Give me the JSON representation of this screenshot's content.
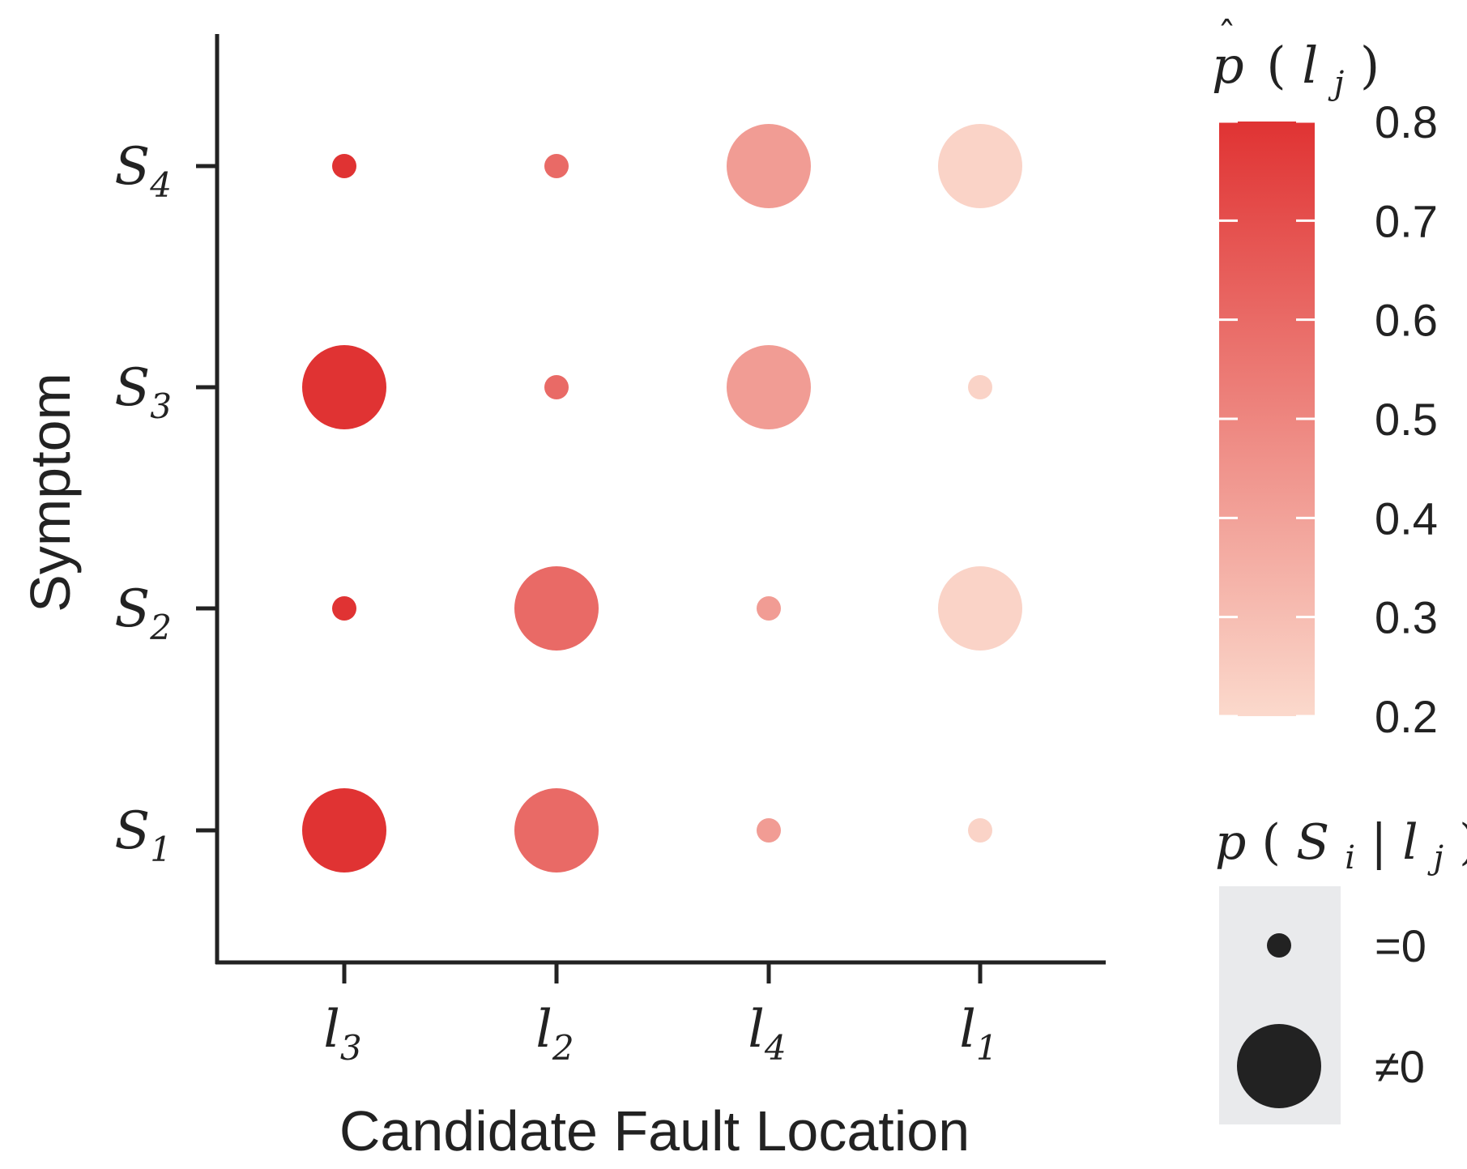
{
  "chart_data": {
    "type": "scatter",
    "subtype": "bubble-matrix",
    "xlabel": "Candidate Fault Location",
    "ylabel": "Symptom",
    "x_categories": [
      {
        "base": "l",
        "sub": "3"
      },
      {
        "base": "l",
        "sub": "2"
      },
      {
        "base": "l",
        "sub": "4"
      },
      {
        "base": "l",
        "sub": "1"
      }
    ],
    "y_categories": [
      {
        "base": "S",
        "sub": "1"
      },
      {
        "base": "S",
        "sub": "2"
      },
      {
        "base": "S",
        "sub": "3"
      },
      {
        "base": "S",
        "sub": "4"
      }
    ],
    "points": [
      {
        "x": "l3",
        "y": "S1",
        "p_hat": 0.8,
        "nonzero": true
      },
      {
        "x": "l3",
        "y": "S2",
        "p_hat": 0.8,
        "nonzero": false
      },
      {
        "x": "l3",
        "y": "S3",
        "p_hat": 0.8,
        "nonzero": true
      },
      {
        "x": "l3",
        "y": "S4",
        "p_hat": 0.8,
        "nonzero": false
      },
      {
        "x": "l2",
        "y": "S1",
        "p_hat": 0.6,
        "nonzero": true
      },
      {
        "x": "l2",
        "y": "S2",
        "p_hat": 0.6,
        "nonzero": true
      },
      {
        "x": "l2",
        "y": "S3",
        "p_hat": 0.6,
        "nonzero": false
      },
      {
        "x": "l2",
        "y": "S4",
        "p_hat": 0.6,
        "nonzero": false
      },
      {
        "x": "l4",
        "y": "S1",
        "p_hat": 0.42,
        "nonzero": false
      },
      {
        "x": "l4",
        "y": "S2",
        "p_hat": 0.42,
        "nonzero": false
      },
      {
        "x": "l4",
        "y": "S3",
        "p_hat": 0.42,
        "nonzero": true
      },
      {
        "x": "l4",
        "y": "S4",
        "p_hat": 0.42,
        "nonzero": true
      },
      {
        "x": "l1",
        "y": "S1",
        "p_hat": 0.22,
        "nonzero": false
      },
      {
        "x": "l1",
        "y": "S2",
        "p_hat": 0.22,
        "nonzero": true
      },
      {
        "x": "l1",
        "y": "S3",
        "p_hat": 0.22,
        "nonzero": false
      },
      {
        "x": "l1",
        "y": "S4",
        "p_hat": 0.22,
        "nonzero": true
      }
    ],
    "colorbar": {
      "title": {
        "base": "p",
        "sub": "j"
      },
      "range": [
        0.2,
        0.8
      ],
      "ticks": [
        "0.8",
        "0.7",
        "0.6",
        "0.5",
        "0.4",
        "0.3",
        "0.2"
      ],
      "color_low": "#fbd9cc",
      "color_high": "#e03333"
    },
    "size_legend": {
      "title": {
        "p": "p",
        "S": "S",
        "S_sub": "i",
        "l": "l",
        "l_sub": "j"
      },
      "entries": [
        {
          "label": "=0",
          "nonzero": false
        },
        {
          "label": "≠0",
          "nonzero": true
        }
      ],
      "background": "#e9eaec",
      "marker_color": "#222222"
    },
    "legend_position": "right",
    "grid": false
  }
}
